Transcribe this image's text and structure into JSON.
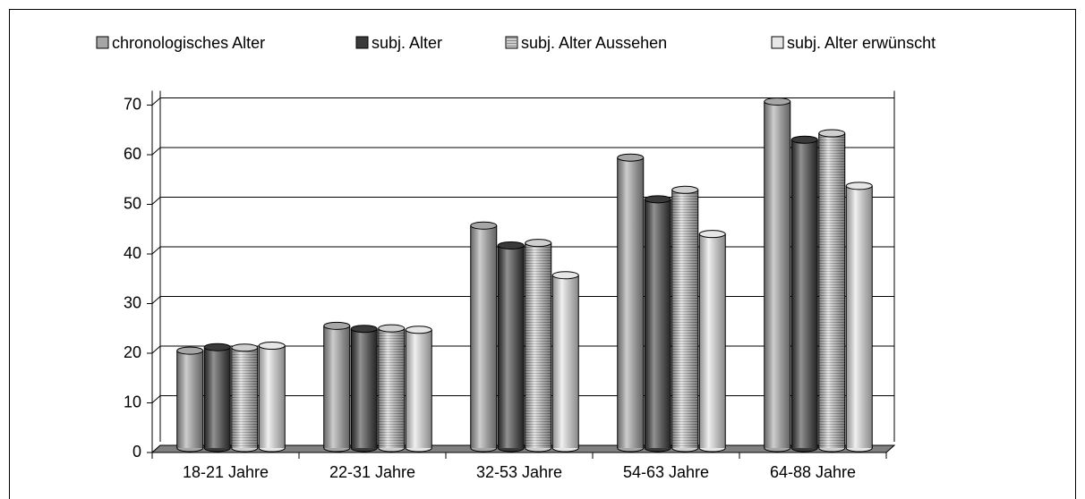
{
  "chart_data": {
    "type": "bar",
    "categories": [
      "18-21 Jahre",
      "22-31 Jahre",
      "32-53 Jahre",
      "54-63 Jahre",
      "64-88 Jahre"
    ],
    "series": [
      {
        "name": "chronologisches Alter",
        "color": "#a6a6a6",
        "values": [
          19.8,
          24.8,
          45,
          58.7,
          70
        ]
      },
      {
        "name": "subj. Alter",
        "color": "#3a3a3a",
        "values": [
          20.5,
          24.2,
          41,
          50.3,
          62.3
        ]
      },
      {
        "name": "subj. Alter Aussehen",
        "color": "#cfcfcf",
        "values": [
          20.4,
          24.3,
          41.5,
          52.2,
          63.6
        ]
      },
      {
        "name": "subj. Alter erwünscht",
        "color": "#e6e6e6",
        "values": [
          20.8,
          24,
          35,
          43.3,
          53
        ]
      }
    ],
    "ylim": [
      0,
      70
    ],
    "yticks": [
      0,
      10,
      20,
      30,
      40,
      50,
      60,
      70
    ],
    "grid": true,
    "legend": "top"
  }
}
